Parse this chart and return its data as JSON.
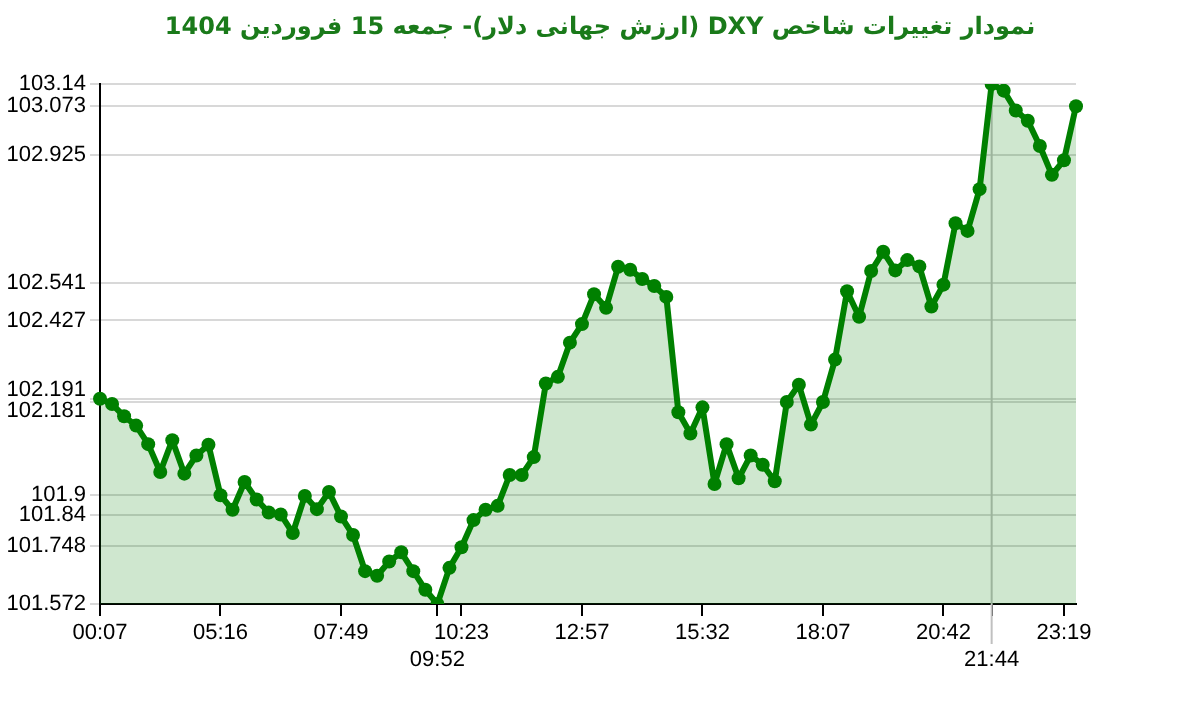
{
  "chart_data": {
    "type": "area",
    "title": "نمودار تغییرات شاخص DXY (ارزش جهانی دلار)- جمعه  15 فروردین 1404",
    "categories": [
      "00:07",
      null,
      null,
      null,
      null,
      null,
      null,
      null,
      null,
      null,
      "05:16",
      null,
      null,
      null,
      null,
      null,
      null,
      null,
      null,
      null,
      "07:49",
      null,
      null,
      null,
      null,
      null,
      null,
      null,
      "09:52",
      null,
      "10:23",
      null,
      null,
      null,
      null,
      null,
      null,
      null,
      null,
      null,
      "12:57",
      null,
      null,
      null,
      null,
      null,
      null,
      null,
      null,
      null,
      "15:32",
      null,
      null,
      null,
      null,
      null,
      null,
      null,
      null,
      null,
      "18:07",
      null,
      null,
      null,
      null,
      null,
      null,
      null,
      null,
      null,
      "20:42",
      null,
      null,
      null,
      "21:44",
      null,
      null,
      null,
      null,
      null,
      "23:19",
      null
    ],
    "values": [
      102.191,
      102.175,
      102.138,
      102.11,
      102.054,
      101.97,
      102.066,
      101.965,
      102.02,
      102.052,
      101.9,
      101.856,
      101.94,
      101.887,
      101.848,
      101.842,
      101.786,
      101.898,
      101.858,
      101.91,
      101.836,
      101.78,
      101.671,
      101.657,
      101.7,
      101.728,
      101.671,
      101.615,
      101.572,
      101.681,
      101.743,
      101.825,
      101.856,
      101.868,
      101.961,
      101.961,
      102.015,
      102.237,
      102.257,
      102.36,
      102.416,
      102.506,
      102.465,
      102.589,
      102.58,
      102.552,
      102.531,
      102.498,
      102.15,
      102.086,
      102.165,
      101.934,
      102.054,
      101.951,
      102.02,
      101.992,
      101.942,
      102.181,
      102.233,
      102.113,
      102.181,
      102.309,
      102.515,
      102.438,
      102.576,
      102.634,
      102.578,
      102.609,
      102.59,
      102.469,
      102.535,
      102.72,
      102.697,
      102.823,
      103.14,
      103.12,
      103.06,
      103.029,
      102.953,
      102.866,
      102.91,
      103.073
    ],
    "color": "#008000",
    "ylim": [
      101.572,
      103.14
    ],
    "yticks": [
      101.572,
      101.748,
      101.84,
      101.9,
      102.181,
      102.191,
      102.427,
      102.541,
      102.925,
      103.073,
      103.14
    ],
    "grid": "y",
    "marker": "circle",
    "legend": false,
    "ref_lines": [
      {
        "axis": "x",
        "value": "21:44",
        "color": "#c0c0c0"
      }
    ]
  }
}
